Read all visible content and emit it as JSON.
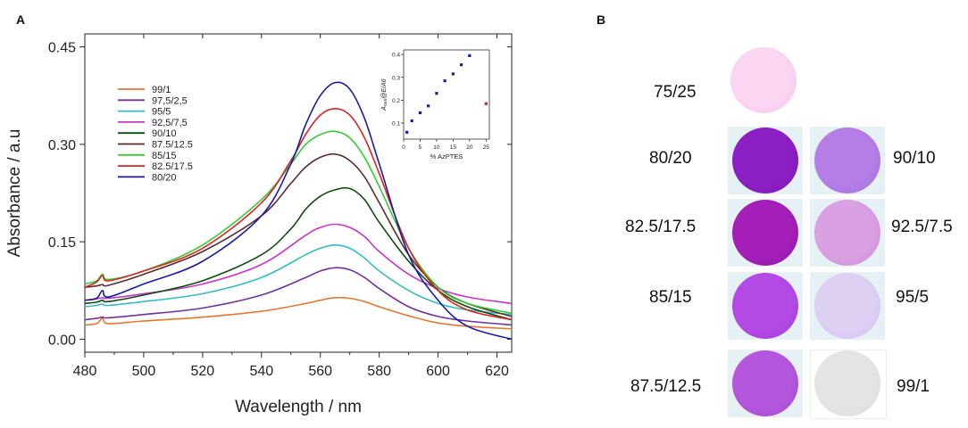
{
  "panels": {
    "a": "A",
    "b": "B"
  },
  "chart_data": {
    "type": "line",
    "xlabel": "Wavelength / nm",
    "ylabel": "Absorbance / a.u",
    "xlim": [
      480,
      625
    ],
    "ylim": [
      -0.02,
      0.47
    ],
    "xticks": [
      480,
      500,
      520,
      540,
      560,
      580,
      600,
      620
    ],
    "yticks": [
      0.0,
      0.15,
      0.3,
      0.45
    ],
    "ytick_labels": [
      "0.00",
      "0.15",
      "0.30",
      "0.45"
    ],
    "legend_position": "top-left",
    "series": [
      {
        "name": "99/1",
        "color": "#e8772e",
        "x": [
          480,
          484,
          486,
          488,
          500,
          520,
          540,
          555,
          560,
          565,
          570,
          575,
          580,
          590,
          600,
          610,
          625
        ],
        "y": [
          0.022,
          0.024,
          0.032,
          0.024,
          0.028,
          0.034,
          0.043,
          0.055,
          0.06,
          0.064,
          0.063,
          0.058,
          0.05,
          0.036,
          0.025,
          0.02,
          0.016
        ]
      },
      {
        "name": "97,5/2,5",
        "color": "#7030a0",
        "x": [
          480,
          484,
          486,
          488,
          500,
          520,
          540,
          555,
          560,
          565,
          570,
          575,
          580,
          590,
          600,
          610,
          625
        ],
        "y": [
          0.03,
          0.032,
          0.034,
          0.033,
          0.038,
          0.048,
          0.068,
          0.095,
          0.105,
          0.11,
          0.107,
          0.095,
          0.078,
          0.05,
          0.035,
          0.028,
          0.022
        ]
      },
      {
        "name": "95/5",
        "color": "#33bcc5",
        "x": [
          480,
          484,
          486,
          488,
          500,
          520,
          540,
          555,
          560,
          565,
          570,
          575,
          580,
          590,
          600,
          610,
          625
        ],
        "y": [
          0.05,
          0.052,
          0.054,
          0.052,
          0.058,
          0.07,
          0.095,
          0.13,
          0.14,
          0.145,
          0.14,
          0.125,
          0.105,
          0.075,
          0.055,
          0.045,
          0.038
        ]
      },
      {
        "name": "92,5/7,5",
        "color": "#cc33cc",
        "x": [
          480,
          484,
          486,
          488,
          500,
          520,
          540,
          555,
          560,
          565,
          570,
          575,
          580,
          590,
          600,
          610,
          625
        ],
        "y": [
          0.06,
          0.062,
          0.064,
          0.063,
          0.07,
          0.085,
          0.115,
          0.16,
          0.172,
          0.177,
          0.172,
          0.158,
          0.135,
          0.1,
          0.078,
          0.065,
          0.055
        ]
      },
      {
        "name": "90/10",
        "color": "#0d4d0d",
        "x": [
          480,
          484,
          486,
          488,
          500,
          520,
          540,
          550,
          555,
          560,
          565,
          570,
          575,
          580,
          590,
          600,
          610,
          625
        ],
        "y": [
          0.055,
          0.057,
          0.06,
          0.058,
          0.068,
          0.09,
          0.13,
          0.17,
          0.2,
          0.22,
          0.23,
          0.232,
          0.215,
          0.18,
          0.12,
          0.075,
          0.05,
          0.03
        ]
      },
      {
        "name": "87.5/12.5",
        "color": "#5a2d2d",
        "x": [
          480,
          484,
          486,
          488,
          500,
          520,
          540,
          550,
          555,
          560,
          565,
          570,
          575,
          580,
          590,
          600,
          610,
          625
        ],
        "y": [
          0.08,
          0.082,
          0.084,
          0.083,
          0.1,
          0.135,
          0.19,
          0.24,
          0.265,
          0.28,
          0.285,
          0.275,
          0.25,
          0.21,
          0.13,
          0.08,
          0.055,
          0.035
        ]
      },
      {
        "name": "85/15",
        "color": "#33cc33",
        "x": [
          480,
          484,
          486,
          488,
          500,
          520,
          540,
          550,
          555,
          560,
          565,
          570,
          575,
          580,
          590,
          600,
          610,
          625
        ],
        "y": [
          0.085,
          0.09,
          0.1,
          0.092,
          0.105,
          0.145,
          0.215,
          0.27,
          0.3,
          0.315,
          0.32,
          0.31,
          0.28,
          0.235,
          0.14,
          0.08,
          0.055,
          0.04
        ]
      },
      {
        "name": "82.5/17.5",
        "color": "#dd2222",
        "x": [
          480,
          484,
          486,
          488,
          500,
          520,
          540,
          550,
          555,
          560,
          565,
          570,
          575,
          580,
          590,
          600,
          610,
          625
        ],
        "y": [
          0.08,
          0.088,
          0.098,
          0.09,
          0.105,
          0.14,
          0.21,
          0.275,
          0.315,
          0.345,
          0.355,
          0.345,
          0.31,
          0.255,
          0.14,
          0.075,
          0.045,
          0.03
        ]
      },
      {
        "name": "80/20",
        "color": "#1a1aa6",
        "x": [
          480,
          484,
          486,
          488,
          500,
          520,
          540,
          550,
          555,
          560,
          565,
          570,
          575,
          580,
          590,
          600,
          610,
          625
        ],
        "y": [
          0.06,
          0.063,
          0.075,
          0.065,
          0.085,
          0.12,
          0.19,
          0.27,
          0.33,
          0.375,
          0.395,
          0.385,
          0.34,
          0.27,
          0.13,
          0.06,
          0.02,
          0.0
        ]
      }
    ],
    "inset": {
      "type": "scatter",
      "xlabel": "% AzPTES",
      "ylabel": "A₅₆₅@E/A6",
      "xlim": [
        0,
        26
      ],
      "ylim": [
        0.03,
        0.42
      ],
      "xticks": [
        0,
        5,
        10,
        15,
        20,
        25
      ],
      "yticks": [
        0.1,
        0.2,
        0.3,
        0.4
      ],
      "ytick_labels": [
        "0.1",
        "0.2",
        "0.3",
        "0.4"
      ],
      "points": [
        {
          "x": 1,
          "y": 0.06,
          "color": "#1a1aa6"
        },
        {
          "x": 2.5,
          "y": 0.11,
          "color": "#1a1aa6"
        },
        {
          "x": 5,
          "y": 0.145,
          "color": "#1a1aa6"
        },
        {
          "x": 7.5,
          "y": 0.175,
          "color": "#1a1aa6"
        },
        {
          "x": 10,
          "y": 0.23,
          "color": "#1a1aa6"
        },
        {
          "x": 12.5,
          "y": 0.285,
          "color": "#1a1aa6"
        },
        {
          "x": 15,
          "y": 0.315,
          "color": "#1a1aa6"
        },
        {
          "x": 17.5,
          "y": 0.355,
          "color": "#1a1aa6"
        },
        {
          "x": 20,
          "y": 0.395,
          "color": "#1a1aa6"
        },
        {
          "x": 25,
          "y": 0.185,
          "color": "#cc2222"
        }
      ]
    }
  },
  "samples": [
    {
      "label": "75/25",
      "color": "#fbd6f2",
      "edge": "#f5c2ea"
    },
    {
      "label": "80/20",
      "color": "#8c1fc4",
      "edge": "#7a15b0"
    },
    {
      "label": "90/10",
      "color": "#b47ee6",
      "edge": "#a26cdc"
    },
    {
      "label": "82.5/17.5",
      "color": "#a41fb8",
      "edge": "#8f14a5"
    },
    {
      "label": "92.5/7.5",
      "color": "#d9a0e2",
      "edge": "#c88ad6"
    },
    {
      "label": "85/15",
      "color": "#b44ae6",
      "edge": "#a23ad8"
    },
    {
      "label": "95/5",
      "color": "#ddd0f3",
      "edge": "#cfc0ee"
    },
    {
      "label": "87.5/12.5",
      "color": "#b457dd",
      "edge": "#a247d0"
    },
    {
      "label": "99/1",
      "color": "#e4e4e4",
      "edge": "#dadada"
    }
  ]
}
